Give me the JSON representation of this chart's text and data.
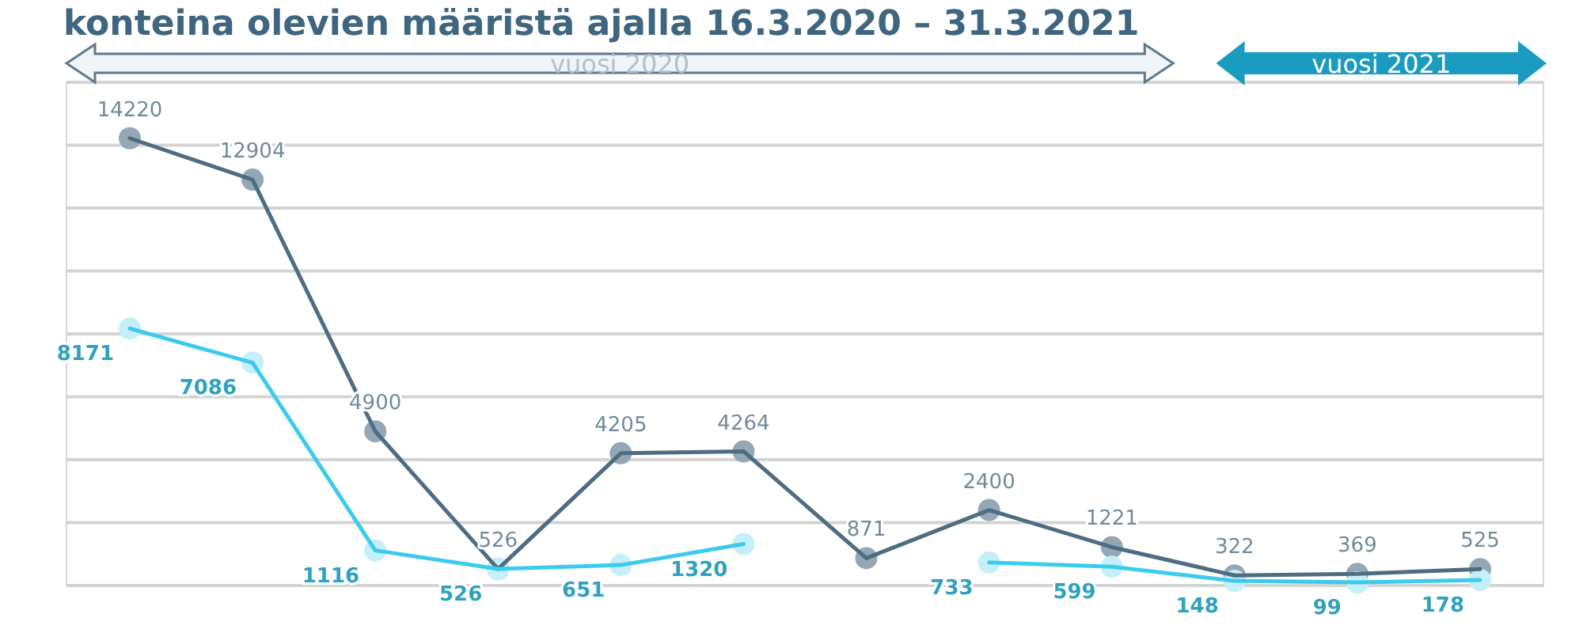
{
  "chart_data": {
    "type": "line",
    "title": "konteina olevien määristä ajalla 16.3.2020 – 31.3.2021",
    "categories": [
      null,
      null,
      null,
      null,
      null,
      null,
      null,
      null,
      null,
      null,
      null,
      null
    ],
    "series": [
      {
        "color": "#4d6d82",
        "values": [
          14220,
          12904,
          4900,
          526,
          4205,
          4264,
          871,
          2400,
          1221,
          322,
          369,
          525
        ]
      },
      {
        "color": "#3ccbed",
        "values": [
          8171,
          7086,
          1116,
          526,
          651,
          1320,
          null,
          733,
          599,
          148,
          99,
          178
        ]
      }
    ],
    "ylim": [
      0,
      16000
    ],
    "yticks": [
      {
        "value": 0,
        "label": null
      },
      {
        "value": 2000,
        "label": null
      },
      {
        "value": 4000,
        "label": null
      },
      {
        "value": 6000,
        "label": null
      },
      {
        "value": 8000,
        "label": null
      },
      {
        "value": 10000,
        "label": null
      },
      {
        "value": 12000,
        "label": null
      },
      {
        "value": 14000,
        "label": null
      },
      {
        "value": 16000,
        "label": null
      }
    ],
    "grid": "y",
    "marker": "circle",
    "line_style": "solid",
    "data_labels": true,
    "annotations": [
      "vuosi 2020",
      "vuosi 2021"
    ]
  }
}
